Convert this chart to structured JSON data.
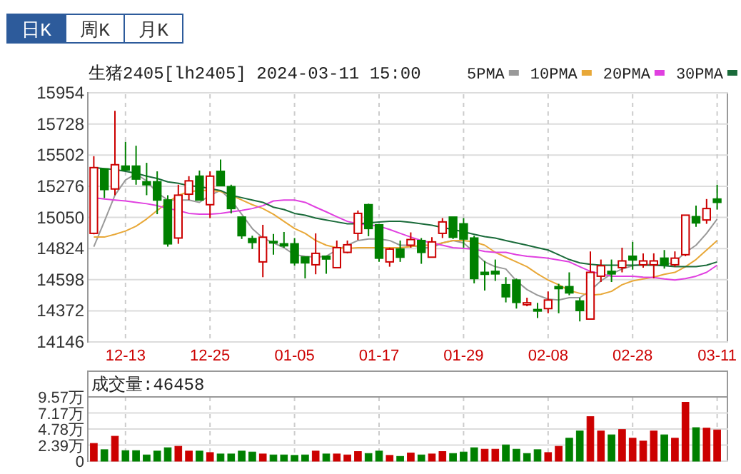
{
  "chart_data": [
    {
      "type": "candlestick",
      "title": "生猪2405[lh2405] 2024-03-11 15:00",
      "annotations": [
        "日K",
        "周K",
        "月K"
      ],
      "categories": [
        null,
        null,
        null,
        "12-13",
        null,
        null,
        null,
        null,
        null,
        null,
        null,
        "12-25",
        null,
        null,
        null,
        null,
        null,
        null,
        null,
        "01-05",
        null,
        null,
        null,
        null,
        null,
        null,
        null,
        "01-17",
        null,
        null,
        null,
        null,
        null,
        null,
        null,
        "01-29",
        null,
        null,
        null,
        null,
        null,
        null,
        null,
        "02-08",
        null,
        null,
        null,
        null,
        null,
        null,
        null,
        "02-28",
        null,
        null,
        null,
        null,
        null,
        null,
        null,
        "03-11"
      ],
      "ohlc": [
        [
          14934,
          15494,
          14927,
          15411
        ],
        [
          15401,
          15401,
          15190,
          15252
        ],
        [
          15256,
          15823,
          15211,
          15432
        ],
        [
          15422,
          15598,
          15394,
          15394
        ],
        [
          15422,
          15570,
          15287,
          15328
        ],
        [
          15308,
          15446,
          15211,
          15287
        ],
        [
          15308,
          15384,
          15073,
          15176
        ],
        [
          15176,
          15211,
          14837,
          14858
        ],
        [
          14900,
          15287,
          14858,
          15211
        ],
        [
          15218,
          15349,
          15176,
          15315
        ],
        [
          15349,
          15390,
          15176,
          15176
        ],
        [
          15142,
          15384,
          15045,
          15349
        ],
        [
          15384,
          15470,
          15280,
          15280
        ],
        [
          15273,
          15287,
          15079,
          15114
        ],
        [
          15052,
          15052,
          14893,
          14917
        ],
        [
          14896,
          14917,
          14820,
          14868
        ],
        [
          14727,
          14996,
          14616,
          14906
        ],
        [
          14875,
          14930,
          14779,
          14868
        ],
        [
          14858,
          14944,
          14830,
          14844
        ],
        [
          14858,
          14900,
          14700,
          14720
        ],
        [
          14762,
          14762,
          14607,
          14720
        ],
        [
          14706,
          14934,
          14637,
          14789
        ],
        [
          14768,
          14768,
          14641,
          14748
        ],
        [
          14685,
          14882,
          14685,
          14830
        ],
        [
          14796,
          14882,
          14789,
          14851
        ],
        [
          14934,
          15100,
          14886,
          15079
        ],
        [
          15142,
          15149,
          14913,
          14969
        ],
        [
          14996,
          14996,
          14727,
          14754
        ],
        [
          14727,
          14830,
          14692,
          14820
        ],
        [
          14820,
          14882,
          14727,
          14761
        ],
        [
          14848,
          14941,
          14830,
          14889
        ],
        [
          14882,
          14900,
          14713,
          14796
        ],
        [
          14761,
          14906,
          14761,
          14872
        ],
        [
          14934,
          15045,
          14900,
          15017
        ],
        [
          15052,
          15052,
          14893,
          14906
        ],
        [
          15003,
          15045,
          14830,
          14893
        ],
        [
          14900,
          14917,
          14571,
          14606
        ],
        [
          14651,
          14734,
          14519,
          14637
        ],
        [
          14658,
          14744,
          14589,
          14640
        ],
        [
          14561,
          14616,
          14433,
          14474
        ],
        [
          14595,
          14606,
          14388,
          14433
        ],
        [
          14416,
          14467,
          14405,
          14430
        ],
        [
          14381,
          14430,
          14319,
          14371
        ],
        [
          14388,
          14512,
          14354,
          14450
        ],
        [
          14547,
          14568,
          14354,
          14533
        ],
        [
          14547,
          14651,
          14485,
          14502
        ],
        [
          14443,
          14467,
          14295,
          14374
        ],
        [
          14312,
          14803,
          14312,
          14651
        ],
        [
          14623,
          14744,
          14581,
          14699
        ],
        [
          14658,
          14744,
          14581,
          14640
        ],
        [
          14685,
          14830,
          14651,
          14734
        ],
        [
          14768,
          14872,
          14671,
          14741
        ],
        [
          14706,
          14789,
          14685,
          14734
        ],
        [
          14706,
          14789,
          14607,
          14734
        ],
        [
          14754,
          14813,
          14678,
          14706
        ],
        [
          14706,
          14803,
          14692,
          14754
        ],
        [
          14779,
          15066,
          14768,
          15066
        ],
        [
          15055,
          15135,
          14982,
          15010
        ],
        [
          15031,
          15183,
          15003,
          15114
        ],
        [
          15183,
          15287,
          15107,
          15159
        ]
      ],
      "series": [
        {
          "type": "line",
          "name": "5PMA",
          "color": "#999999",
          "values": [
            14837,
            15021,
            15211,
            15321,
            15366,
            15314,
            15228,
            15176,
            15176,
            15176,
            15159,
            15211,
            15245,
            15176,
            15073,
            14969,
            14900,
            14865,
            14830,
            14779,
            14768,
            14761,
            14768,
            14813,
            14848,
            14882,
            14893,
            14893,
            14882,
            14848,
            14848,
            14830,
            14830,
            14865,
            14882,
            14865,
            14796,
            14727,
            14692,
            14675,
            14589,
            14526,
            14485,
            14457,
            14450,
            14467,
            14467,
            14519,
            14589,
            14640,
            14675,
            14699,
            14710,
            14706,
            14703,
            14727,
            14796,
            14848,
            14934,
            15038
          ]
        },
        {
          "type": "line",
          "name": "10PMA",
          "color": "#e8a838",
          "values": [
            14907,
            14907,
            14927,
            14951,
            14986,
            15038,
            15100,
            15159,
            15211,
            15235,
            15245,
            15245,
            15238,
            15211,
            15176,
            15142,
            15114,
            15073,
            15021,
            14969,
            14934,
            14882,
            14848,
            14830,
            14824,
            14830,
            14830,
            14830,
            14830,
            14830,
            14837,
            14848,
            14848,
            14865,
            14882,
            14882,
            14872,
            14848,
            14796,
            14761,
            14727,
            14692,
            14640,
            14595,
            14561,
            14519,
            14499,
            14485,
            14492,
            14513,
            14561,
            14589,
            14603,
            14616,
            14637,
            14651,
            14692,
            14744,
            14813,
            14882
          ]
        },
        {
          "type": "line",
          "name": "20PMA",
          "color": "#e040e0",
          "values": [
            15193,
            15183,
            15176,
            15169,
            15159,
            15149,
            15135,
            15114,
            15100,
            15079,
            15073,
            15073,
            15079,
            15090,
            15100,
            15114,
            15135,
            15169,
            15176,
            15176,
            15159,
            15124,
            15090,
            15055,
            15021,
            15003,
            14996,
            14986,
            14962,
            14934,
            14907,
            14882,
            14865,
            14848,
            14830,
            14824,
            14820,
            14803,
            14796,
            14796,
            14779,
            14768,
            14761,
            14754,
            14741,
            14727,
            14692,
            14658,
            14640,
            14623,
            14623,
            14623,
            14616,
            14613,
            14603,
            14595,
            14606,
            14623,
            14651,
            14703
          ]
        },
        {
          "type": "line",
          "name": "30PMA",
          "color": "#1a6b3a",
          "values": [
            15411,
            15404,
            15397,
            15384,
            15370,
            15349,
            15332,
            15308,
            15297,
            15280,
            15273,
            15259,
            15245,
            15211,
            15193,
            15176,
            15159,
            15124,
            15107,
            15079,
            15066,
            15045,
            15031,
            15017,
            15003,
            15003,
            15010,
            15017,
            15021,
            15021,
            15014,
            15003,
            14993,
            14976,
            14962,
            14945,
            14927,
            14910,
            14900,
            14882,
            14865,
            14848,
            14830,
            14813,
            14779,
            14744,
            14720,
            14710,
            14703,
            14703,
            14703,
            14703,
            14703,
            14703,
            14699,
            14692,
            14692,
            14692,
            14703,
            14727
          ]
        }
      ],
      "ylim": [
        14146,
        15954
      ],
      "yticks": [
        14146,
        14372,
        14598,
        14824,
        15050,
        15276,
        15502,
        15728,
        15954
      ],
      "grid": true,
      "legend": "top right"
    },
    {
      "type": "bar",
      "title": "成交量:46458",
      "categories": [
        null,
        null,
        null,
        null,
        null,
        null,
        null,
        null,
        null,
        null,
        null,
        null,
        null,
        null,
        null,
        null,
        null,
        null,
        null,
        null,
        null,
        null,
        null,
        null,
        null,
        null,
        null,
        null,
        null,
        null,
        null,
        null,
        null,
        null,
        null,
        null,
        null,
        null,
        null,
        null,
        null,
        null,
        null,
        null,
        null,
        null,
        null,
        null,
        null,
        null,
        null,
        null,
        null,
        null,
        null,
        null,
        null,
        null,
        null,
        null
      ],
      "values": [
        2.64,
        1.71,
        3.71,
        1.57,
        1.57,
        0.93,
        1.5,
        2.0,
        2.21,
        1.5,
        1.5,
        1.28,
        1.07,
        1.07,
        1.5,
        1.36,
        1.07,
        0.93,
        0.93,
        0.86,
        0.93,
        1.5,
        1.07,
        1.07,
        0.93,
        1.43,
        1.14,
        1.5,
        0.86,
        0.71,
        1.21,
        0.93,
        1.07,
        1.43,
        1.14,
        1.36,
        2.0,
        1.78,
        1.78,
        2.42,
        1.78,
        1.14,
        1.71,
        1.28,
        2.21,
        3.42,
        4.49,
        6.63,
        4.49,
        3.92,
        4.71,
        3.42,
        2.99,
        4.49,
        3.92,
        3.42,
        8.77,
        4.99,
        4.92,
        4.65
      ],
      "colors": [
        "#cc0000",
        "#008000",
        "#cc0000",
        "#008000",
        "#008000",
        "#008000",
        "#008000",
        "#008000",
        "#cc0000",
        "#cc0000",
        "#008000",
        "#cc0000",
        "#008000",
        "#008000",
        "#008000",
        "#008000",
        "#cc0000",
        "#008000",
        "#008000",
        "#008000",
        "#008000",
        "#cc0000",
        "#008000",
        "#cc0000",
        "#cc0000",
        "#cc0000",
        "#008000",
        "#008000",
        "#cc0000",
        "#008000",
        "#cc0000",
        "#008000",
        "#cc0000",
        "#cc0000",
        "#008000",
        "#008000",
        "#008000",
        "#cc0000",
        "#cc0000",
        "#008000",
        "#008000",
        "#008000",
        "#008000",
        "#cc0000",
        "#cc0000",
        "#008000",
        "#008000",
        "#cc0000",
        "#cc0000",
        "#008000",
        "#cc0000",
        "#cc0000",
        "#cc0000",
        "#cc0000",
        "#008000",
        "#cc0000",
        "#cc0000",
        "#008000",
        "#cc0000",
        "#cc0000"
      ],
      "ylim": [
        0,
        9.57
      ],
      "yticks": [
        0,
        {
          "value": 2.39,
          "label": "2.39万"
        },
        {
          "value": 4.78,
          "label": "4.78万"
        },
        {
          "value": 7.17,
          "label": "7.17万"
        },
        {
          "value": 9.57,
          "label": "9.57万"
        }
      ],
      "grid": true,
      "tick_labels": "y"
    }
  ]
}
